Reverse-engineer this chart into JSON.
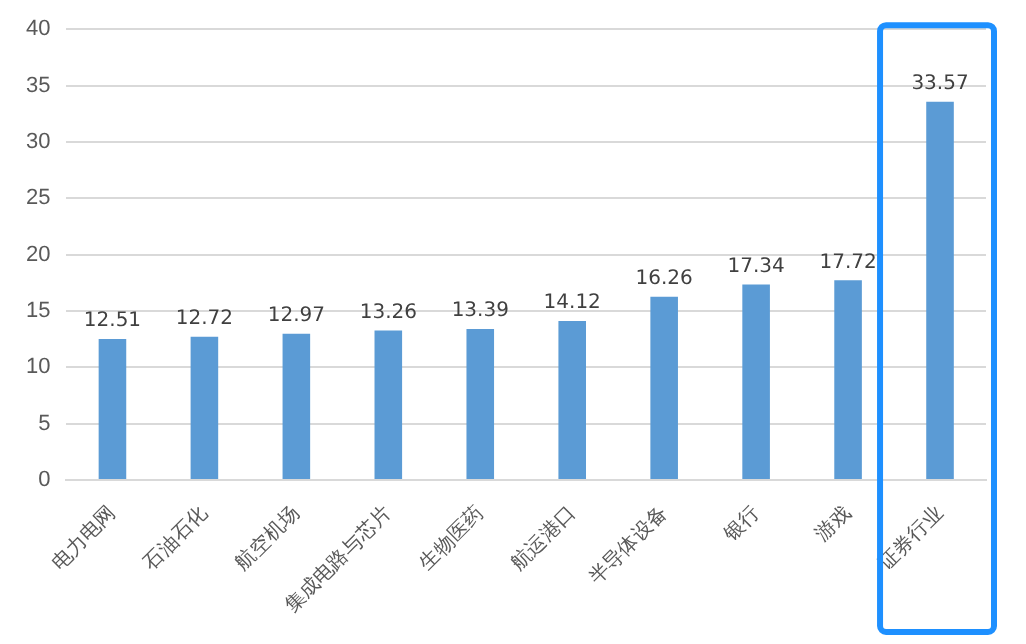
{
  "chart_data": {
    "type": "bar",
    "categories": [
      "电力电网",
      "石油石化",
      "航空机场",
      "集成电路与芯片",
      "生物医药",
      "航运港口",
      "半导体设备",
      "银行",
      "游戏",
      "证券行业"
    ],
    "values": [
      12.51,
      12.72,
      12.97,
      13.26,
      13.39,
      14.12,
      16.26,
      17.34,
      17.72,
      33.57
    ],
    "color": "#5b9bd5",
    "ylim": [
      0,
      40
    ],
    "yticks": [
      0,
      5,
      10,
      15,
      20,
      25,
      30,
      35,
      40
    ],
    "grid": "y",
    "data_labels": true,
    "legend": false
  }
}
